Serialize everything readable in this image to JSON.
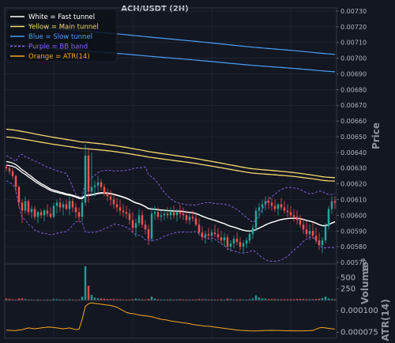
{
  "chart_data": {
    "type": "candlestick",
    "title": "ACH/USDT (2H)",
    "colors": {
      "background": "#131722",
      "grid": "#262c3a",
      "up": "#26a69a",
      "down": "#ef5350",
      "fast": "#ffffff",
      "main": "#f5d76e",
      "slow": "#4a9ff5",
      "bb": "#8a63e6",
      "atr": "#f5a623",
      "text": "#b2b5be"
    },
    "legend": {
      "placement": "top-left",
      "items": [
        {
          "label": "White = Fast tunnel",
          "color": "#ffffff",
          "dash": false,
          "key": "fast"
        },
        {
          "label": "Yellow = Main tunnel",
          "color": "#f5d76e",
          "dash": false,
          "key": "main"
        },
        {
          "label": "Blue = Slow tunnel",
          "color": "#4a9ff5",
          "dash": false,
          "key": "slow"
        },
        {
          "label": "Purple = BB band",
          "color": "#8a63e6",
          "dash": true,
          "key": "bb"
        },
        {
          "label": "Orange = ATR(14)",
          "color": "#f5a623",
          "dash": false,
          "key": "atr"
        }
      ]
    },
    "price_panel": {
      "ylabel": "Price",
      "ylim": [
        0.00569,
        0.00732
      ],
      "ticks": [
        "0.00730",
        "0.00720",
        "0.00710",
        "0.00700",
        "0.00690",
        "0.00680",
        "0.00670",
        "0.00660",
        "0.00650",
        "0.00640",
        "0.00630",
        "0.00620",
        "0.00610",
        "0.00600",
        "0.00590",
        "0.00580",
        "0.00570"
      ],
      "tick_values": [
        0.0073,
        0.0072,
        0.0071,
        0.007,
        0.0069,
        0.0068,
        0.0067,
        0.0066,
        0.0065,
        0.0064,
        0.0063,
        0.0062,
        0.0061,
        0.006,
        0.0059,
        0.0058,
        0.0057
      ]
    },
    "volume_panel": {
      "ylabel": "Volume",
      "multiplier_label": "10",
      "multiplier_exp": "6",
      "ylim": [
        0,
        800
      ],
      "ticks": [
        "500",
        "250"
      ],
      "tick_values": [
        500,
        250
      ]
    },
    "atr_panel": {
      "ylabel": "ATR(14)",
      "ylim": [
        6.8e-05,
        0.000112
      ],
      "ticks": [
        "0.000100",
        "0.000075"
      ],
      "tick_values": [
        0.0001,
        7.5e-05
      ]
    },
    "n_candles": 105,
    "ohlc": [
      [
        0.00631,
        0.00632,
        0.00628,
        0.0063
      ],
      [
        0.0063,
        0.00631,
        0.00626,
        0.00628
      ],
      [
        0.00628,
        0.0063,
        0.00623,
        0.00625
      ],
      [
        0.00625,
        0.00626,
        0.00615,
        0.00618
      ],
      [
        0.00618,
        0.00619,
        0.00605,
        0.00608
      ],
      [
        0.00608,
        0.0061,
        0.00595,
        0.00603
      ],
      [
        0.00603,
        0.00612,
        0.00601,
        0.00609
      ],
      [
        0.00609,
        0.0061,
        0.006,
        0.00602
      ],
      [
        0.00602,
        0.00606,
        0.00598,
        0.00604
      ],
      [
        0.00604,
        0.00606,
        0.00597,
        0.00599
      ],
      [
        0.00599,
        0.00603,
        0.00595,
        0.00602
      ],
      [
        0.00602,
        0.00604,
        0.00598,
        0.006
      ],
      [
        0.006,
        0.00604,
        0.00596,
        0.00603
      ],
      [
        0.00603,
        0.00607,
        0.00599,
        0.00601
      ],
      [
        0.00601,
        0.00605,
        0.00598,
        0.00599
      ],
      [
        0.00599,
        0.00608,
        0.00598,
        0.00606
      ],
      [
        0.00606,
        0.0061,
        0.00601,
        0.00608
      ],
      [
        0.00608,
        0.00611,
        0.00602,
        0.00605
      ],
      [
        0.00605,
        0.00609,
        0.006,
        0.00607
      ],
      [
        0.00607,
        0.0061,
        0.00603,
        0.00604
      ],
      [
        0.00604,
        0.00612,
        0.006,
        0.00609
      ],
      [
        0.00609,
        0.00611,
        0.00602,
        0.00605
      ],
      [
        0.00605,
        0.00608,
        0.00598,
        0.00602
      ],
      [
        0.00602,
        0.00605,
        0.00596,
        0.00599
      ],
      [
        0.00599,
        0.0061,
        0.00596,
        0.00608
      ],
      [
        0.00608,
        0.00645,
        0.00606,
        0.00638
      ],
      [
        0.00638,
        0.00643,
        0.00608,
        0.00615
      ],
      [
        0.00615,
        0.0064,
        0.00612,
        0.00618
      ],
      [
        0.00618,
        0.00622,
        0.00612,
        0.00619
      ],
      [
        0.00619,
        0.00625,
        0.00615,
        0.00621
      ],
      [
        0.00621,
        0.00623,
        0.00616,
        0.00618
      ],
      [
        0.00618,
        0.0062,
        0.00612,
        0.00614
      ],
      [
        0.00614,
        0.00617,
        0.00609,
        0.00612
      ],
      [
        0.00612,
        0.00616,
        0.00606,
        0.0061
      ],
      [
        0.0061,
        0.00614,
        0.00604,
        0.00607
      ],
      [
        0.00607,
        0.00611,
        0.00602,
        0.00605
      ],
      [
        0.00605,
        0.0061,
        0.006,
        0.00603
      ],
      [
        0.00603,
        0.00607,
        0.00599,
        0.00602
      ],
      [
        0.00602,
        0.00606,
        0.00598,
        0.00601
      ],
      [
        0.00601,
        0.00604,
        0.00594,
        0.00597
      ],
      [
        0.00597,
        0.00602,
        0.00589,
        0.00592
      ],
      [
        0.00592,
        0.00598,
        0.00586,
        0.00595
      ],
      [
        0.00595,
        0.00604,
        0.00593,
        0.006
      ],
      [
        0.006,
        0.00603,
        0.00592,
        0.00594
      ],
      [
        0.00594,
        0.00597,
        0.00588,
        0.00591
      ],
      [
        0.00591,
        0.00594,
        0.00581,
        0.00585
      ],
      [
        0.00585,
        0.00605,
        0.00583,
        0.00601
      ],
      [
        0.00601,
        0.00606,
        0.00597,
        0.00602
      ],
      [
        0.00602,
        0.00605,
        0.00597,
        0.00599
      ],
      [
        0.00599,
        0.00603,
        0.00596,
        0.006
      ],
      [
        0.006,
        0.00604,
        0.00597,
        0.00601
      ],
      [
        0.00601,
        0.00605,
        0.00598,
        0.006
      ],
      [
        0.006,
        0.00605,
        0.00597,
        0.00602
      ],
      [
        0.00602,
        0.00606,
        0.00598,
        0.006
      ],
      [
        0.006,
        0.00604,
        0.00596,
        0.00602
      ],
      [
        0.00602,
        0.00607,
        0.00598,
        0.00601
      ],
      [
        0.00601,
        0.00605,
        0.00597,
        0.006
      ],
      [
        0.006,
        0.00603,
        0.00595,
        0.00597
      ],
      [
        0.00597,
        0.00601,
        0.00594,
        0.00599
      ],
      [
        0.00599,
        0.00603,
        0.00596,
        0.00598
      ],
      [
        0.00598,
        0.00601,
        0.00593,
        0.00594
      ],
      [
        0.00594,
        0.00598,
        0.00587,
        0.00589
      ],
      [
        0.00589,
        0.00593,
        0.00584,
        0.00586
      ],
      [
        0.00586,
        0.0059,
        0.00582,
        0.00588
      ],
      [
        0.00588,
        0.00592,
        0.00585,
        0.00587
      ],
      [
        0.00587,
        0.00591,
        0.00583,
        0.00589
      ],
      [
        0.00589,
        0.00594,
        0.00586,
        0.00588
      ],
      [
        0.00588,
        0.00592,
        0.00584,
        0.00586
      ],
      [
        0.00586,
        0.0059,
        0.00582,
        0.00584
      ],
      [
        0.00584,
        0.00589,
        0.0058,
        0.00586
      ],
      [
        0.00586,
        0.00588,
        0.00578,
        0.0058
      ],
      [
        0.0058,
        0.00584,
        0.00577,
        0.00582
      ],
      [
        0.00582,
        0.00587,
        0.00579,
        0.00585
      ],
      [
        0.00585,
        0.00589,
        0.00581,
        0.00583
      ],
      [
        0.00583,
        0.00586,
        0.00578,
        0.0058
      ],
      [
        0.0058,
        0.00584,
        0.00576,
        0.00582
      ],
      [
        0.00582,
        0.00586,
        0.00579,
        0.00584
      ],
      [
        0.00584,
        0.0059,
        0.00582,
        0.00588
      ],
      [
        0.00588,
        0.00594,
        0.00585,
        0.00592
      ],
      [
        0.00592,
        0.00605,
        0.0059,
        0.00603
      ],
      [
        0.00603,
        0.00608,
        0.00598,
        0.00605
      ],
      [
        0.00605,
        0.0061,
        0.00601,
        0.00607
      ],
      [
        0.00607,
        0.00612,
        0.00603,
        0.00609
      ],
      [
        0.00609,
        0.00612,
        0.00604,
        0.00608
      ],
      [
        0.00608,
        0.00611,
        0.00603,
        0.00606
      ],
      [
        0.00606,
        0.0061,
        0.00602,
        0.00604
      ],
      [
        0.00604,
        0.00608,
        0.006,
        0.00607
      ],
      [
        0.00607,
        0.00611,
        0.00603,
        0.00605
      ],
      [
        0.00605,
        0.00609,
        0.00601,
        0.00603
      ],
      [
        0.00603,
        0.00607,
        0.00599,
        0.00602
      ],
      [
        0.00602,
        0.00606,
        0.00598,
        0.006
      ],
      [
        0.006,
        0.00604,
        0.00596,
        0.00599
      ],
      [
        0.00599,
        0.00603,
        0.00594,
        0.00597
      ],
      [
        0.00597,
        0.006,
        0.00592,
        0.00594
      ],
      [
        0.00594,
        0.00598,
        0.00588,
        0.00591
      ],
      [
        0.00591,
        0.00596,
        0.00586,
        0.00588
      ],
      [
        0.00588,
        0.00594,
        0.00584,
        0.0059
      ],
      [
        0.0059,
        0.00595,
        0.00585,
        0.00587
      ],
      [
        0.00587,
        0.00592,
        0.00582,
        0.00584
      ],
      [
        0.00584,
        0.00589,
        0.00578,
        0.00581
      ],
      [
        0.00581,
        0.00586,
        0.00576,
        0.00584
      ],
      [
        0.00584,
        0.00595,
        0.00582,
        0.00593
      ],
      [
        0.00593,
        0.00606,
        0.00591,
        0.00604
      ],
      [
        0.00604,
        0.00612,
        0.00601,
        0.00609
      ],
      [
        0.00609,
        0.00612,
        0.00604,
        0.00608
      ]
    ],
    "volume": [
      40,
      35,
      25,
      20,
      40,
      45,
      30,
      20,
      20,
      15,
      20,
      15,
      15,
      20,
      15,
      30,
      25,
      20,
      20,
      15,
      25,
      20,
      15,
      20,
      80,
      750,
      320,
      120,
      60,
      45,
      40,
      35,
      30,
      30,
      30,
      25,
      25,
      20,
      20,
      20,
      25,
      40,
      30,
      25,
      20,
      30,
      80,
      40,
      25,
      20,
      20,
      20,
      25,
      20,
      20,
      25,
      20,
      20,
      20,
      20,
      20,
      30,
      25,
      25,
      20,
      20,
      20,
      20,
      25,
      20,
      35,
      30,
      20,
      20,
      25,
      20,
      20,
      25,
      40,
      110,
      60,
      40,
      40,
      30,
      30,
      30,
      25,
      25,
      25,
      25,
      25,
      25,
      30,
      30,
      30,
      25,
      25,
      25,
      30,
      35,
      50,
      80,
      40,
      30,
      25
    ],
    "atr": [
      7.75e-05,
      7.72e-05,
      7.7e-05,
      7.68e-05,
      7.75e-05,
      7.8e-05,
      7.9e-05,
      8e-05,
      7.95e-05,
      7.9e-05,
      7.95e-05,
      8e-05,
      8.05e-05,
      8.1e-05,
      8.08e-05,
      8.05e-05,
      8e-05,
      7.95e-05,
      7.9e-05,
      7.95e-05,
      8e-05,
      7.9e-05,
      7.8e-05,
      7.85e-05,
      9e-05,
      0.000105,
      0.000108,
      0.000109,
      0.0001085,
      0.000108,
      0.0001075,
      0.000107,
      0.0001065,
      0.000106,
      0.000105,
      0.000104,
      0.000102,
      0.0001,
      9.8e-05,
      9.7e-05,
      9.65e-05,
      9.6e-05,
      9.5e-05,
      9.45e-05,
      9.4e-05,
      9.35e-05,
      9.3e-05,
      9.2e-05,
      9.1e-05,
      9e-05,
      8.95e-05,
      8.9e-05,
      8.8e-05,
      8.75e-05,
      8.7e-05,
      8.65e-05,
      8.6e-05,
      8.55e-05,
      8.48e-05,
      8.4e-05,
      8.35e-05,
      8.3e-05,
      8.25e-05,
      8.2e-05,
      8.2e-05,
      8.15e-05,
      8.1e-05,
      8.05e-05,
      8e-05,
      7.95e-05,
      7.9e-05,
      7.85e-05,
      7.8e-05,
      7.75e-05,
      7.72e-05,
      7.7e-05,
      7.68e-05,
      7.66e-05,
      7.65e-05,
      7.65e-05,
      7.66e-05,
      7.68e-05,
      7.7e-05,
      7.7e-05,
      7.72e-05,
      7.71e-05,
      7.7e-05,
      7.69e-05,
      7.68e-05,
      7.67e-05,
      7.67e-05,
      7.66e-05,
      7.66e-05,
      7.65e-05,
      7.66e-05,
      7.67e-05,
      7.68e-05,
      7.7e-05,
      7.85e-05,
      8e-05,
      8.05e-05,
      8e-05,
      7.95e-05,
      7.9e-05,
      7.85e-05
    ]
  }
}
